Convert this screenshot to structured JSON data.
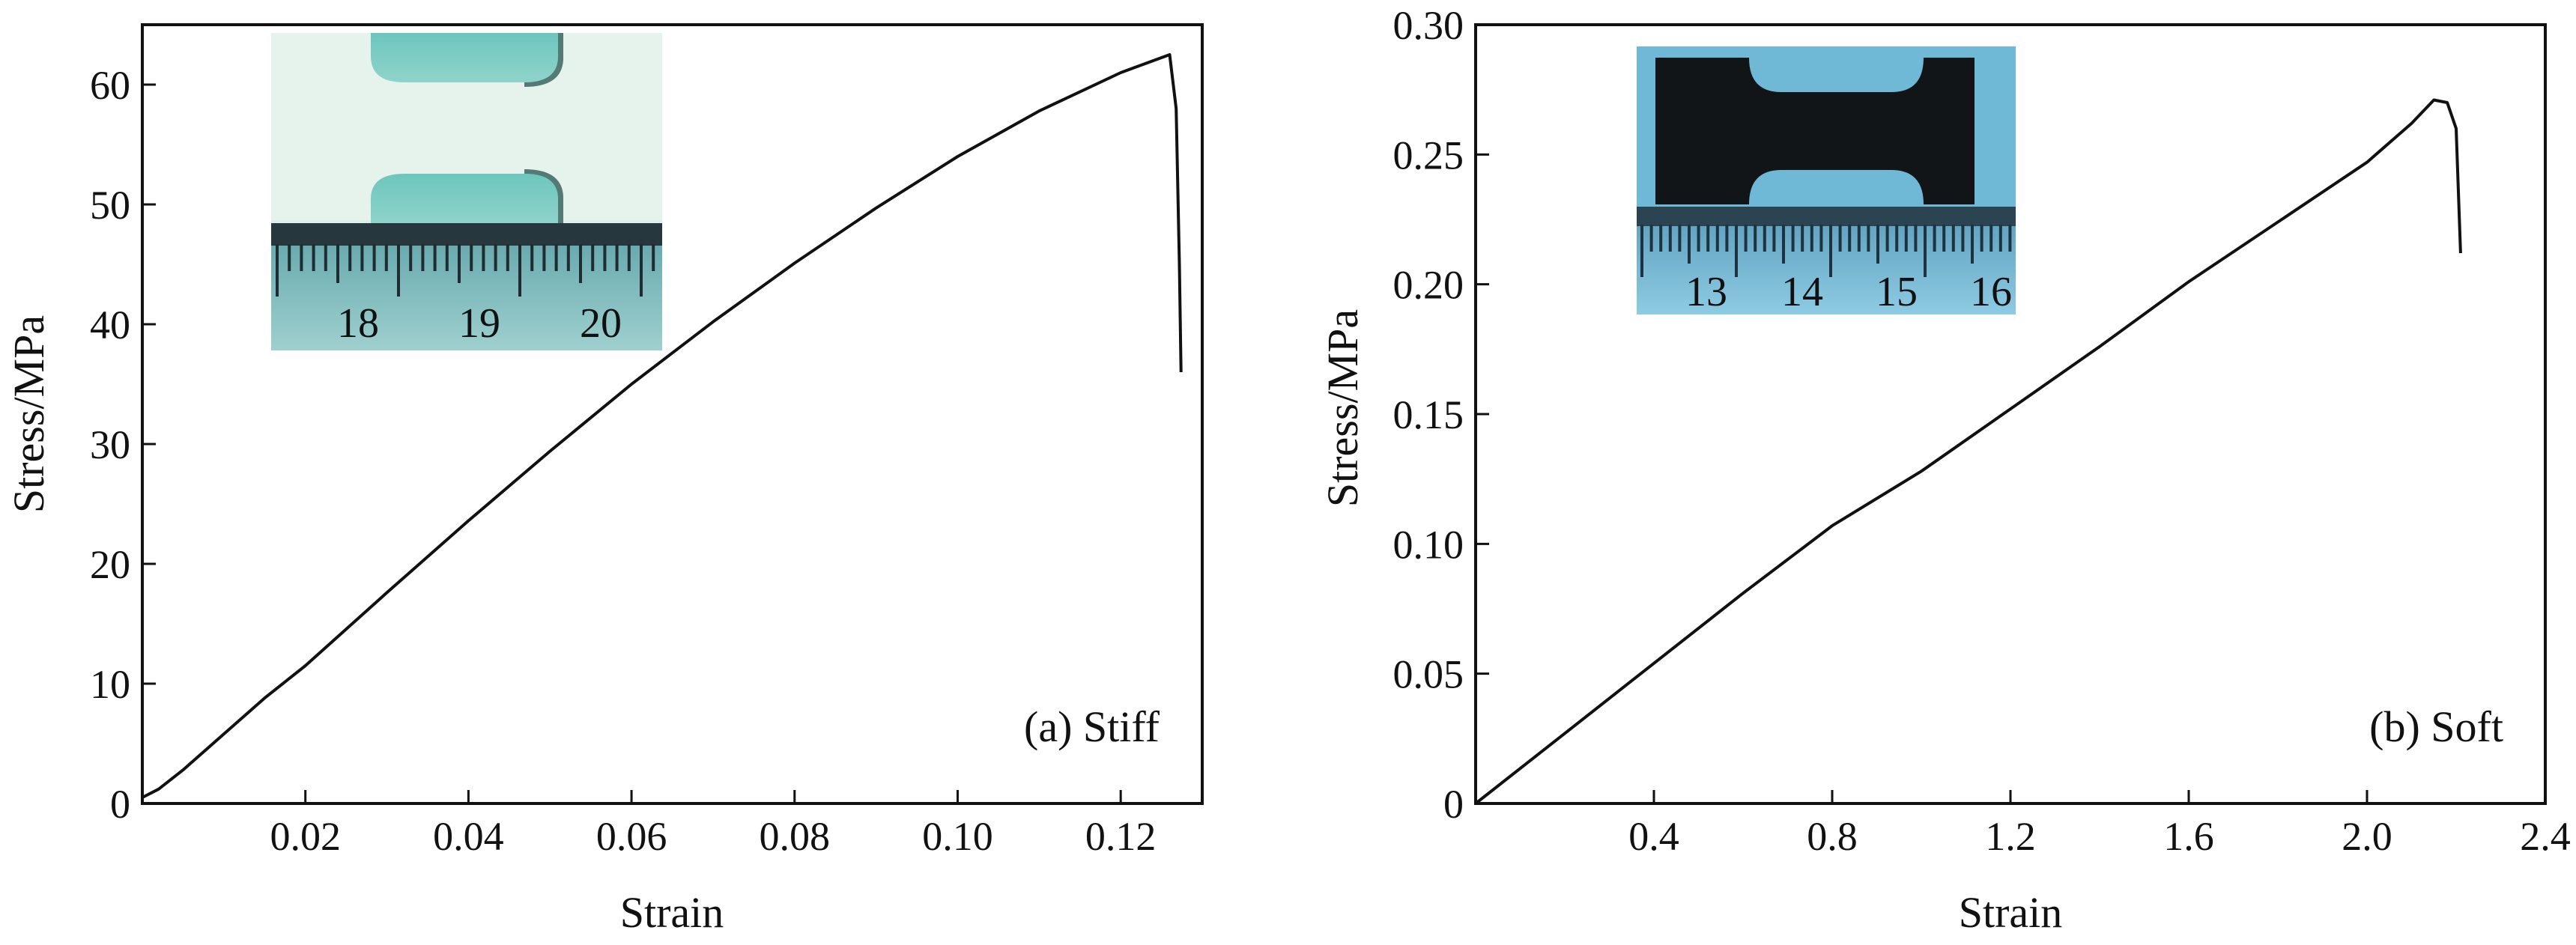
{
  "chart_data": [
    {
      "type": "line",
      "panel_label": "(a) Stiff",
      "xlabel": "Strain",
      "ylabel": "Stress/MPa",
      "xlim": [
        0,
        0.13
      ],
      "ylim": [
        0,
        65
      ],
      "xticks": [
        {
          "value": 0.02,
          "label": "0.02"
        },
        {
          "value": 0.04,
          "label": "0.04"
        },
        {
          "value": 0.06,
          "label": "0.06"
        },
        {
          "value": 0.08,
          "label": "0.08"
        },
        {
          "value": 0.1,
          "label": "0.10"
        },
        {
          "value": 0.12,
          "label": "0.12"
        }
      ],
      "yticks": [
        {
          "value": 0,
          "label": "0"
        },
        {
          "value": 10,
          "label": "10"
        },
        {
          "value": 20,
          "label": "20"
        },
        {
          "value": 30,
          "label": "30"
        },
        {
          "value": 40,
          "label": "40"
        },
        {
          "value": 50,
          "label": "50"
        },
        {
          "value": 60,
          "label": "60"
        }
      ],
      "series": [
        {
          "name": "Stiff",
          "x": [
            0,
            0.002,
            0.005,
            0.01,
            0.015,
            0.02,
            0.03,
            0.04,
            0.05,
            0.06,
            0.07,
            0.08,
            0.09,
            0.1,
            0.11,
            0.12,
            0.126,
            0.1268,
            0.1272,
            0.1274
          ],
          "y": [
            0.5,
            1.2,
            2.8,
            5.8,
            8.8,
            11.5,
            17.6,
            23.6,
            29.4,
            35.0,
            40.2,
            45.1,
            49.7,
            54.0,
            57.8,
            61.0,
            62.5,
            58.0,
            45.0,
            36.0
          ]
        }
      ],
      "inset": {
        "photo": "stiff-specimen",
        "ruler_labels": [
          "18",
          "19",
          "20"
        ],
        "colors": {
          "background": "#d8ede6",
          "specimen": "#eef4ee",
          "grip": "#7ccec4",
          "ruler": "#8fc9c8"
        }
      }
    },
    {
      "type": "line",
      "panel_label": "(b) Soft",
      "xlabel": "Strain",
      "ylabel": "Stress/MPa",
      "xlim": [
        0,
        2.4
      ],
      "ylim": [
        0,
        0.3
      ],
      "xticks": [
        {
          "value": 0.4,
          "label": "0.4"
        },
        {
          "value": 0.8,
          "label": "0.8"
        },
        {
          "value": 1.2,
          "label": "1.2"
        },
        {
          "value": 1.6,
          "label": "1.6"
        },
        {
          "value": 2.0,
          "label": "2.0"
        },
        {
          "value": 2.4,
          "label": "2.4"
        }
      ],
      "yticks": [
        {
          "value": 0,
          "label": "0"
        },
        {
          "value": 0.05,
          "label": "0.05"
        },
        {
          "value": 0.1,
          "label": "0.10"
        },
        {
          "value": 0.15,
          "label": "0.15"
        },
        {
          "value": 0.2,
          "label": "0.20"
        },
        {
          "value": 0.25,
          "label": "0.25"
        },
        {
          "value": 0.3,
          "label": "0.30"
        }
      ],
      "series": [
        {
          "name": "Soft",
          "x": [
            0,
            0.2,
            0.4,
            0.6,
            0.8,
            1.0,
            1.2,
            1.4,
            1.6,
            1.8,
            2.0,
            2.1,
            2.15,
            2.18,
            2.2,
            2.21
          ],
          "y": [
            0,
            0.027,
            0.054,
            0.081,
            0.107,
            0.128,
            0.152,
            0.176,
            0.201,
            0.224,
            0.247,
            0.262,
            0.271,
            0.27,
            0.26,
            0.212
          ]
        }
      ],
      "inset": {
        "photo": "soft-specimen",
        "ruler_labels": [
          "13",
          "14",
          "15",
          "16"
        ],
        "colors": {
          "background": "#6fb7d4",
          "specimen": "#111416",
          "ruler": "#7ec0d9"
        }
      }
    }
  ]
}
